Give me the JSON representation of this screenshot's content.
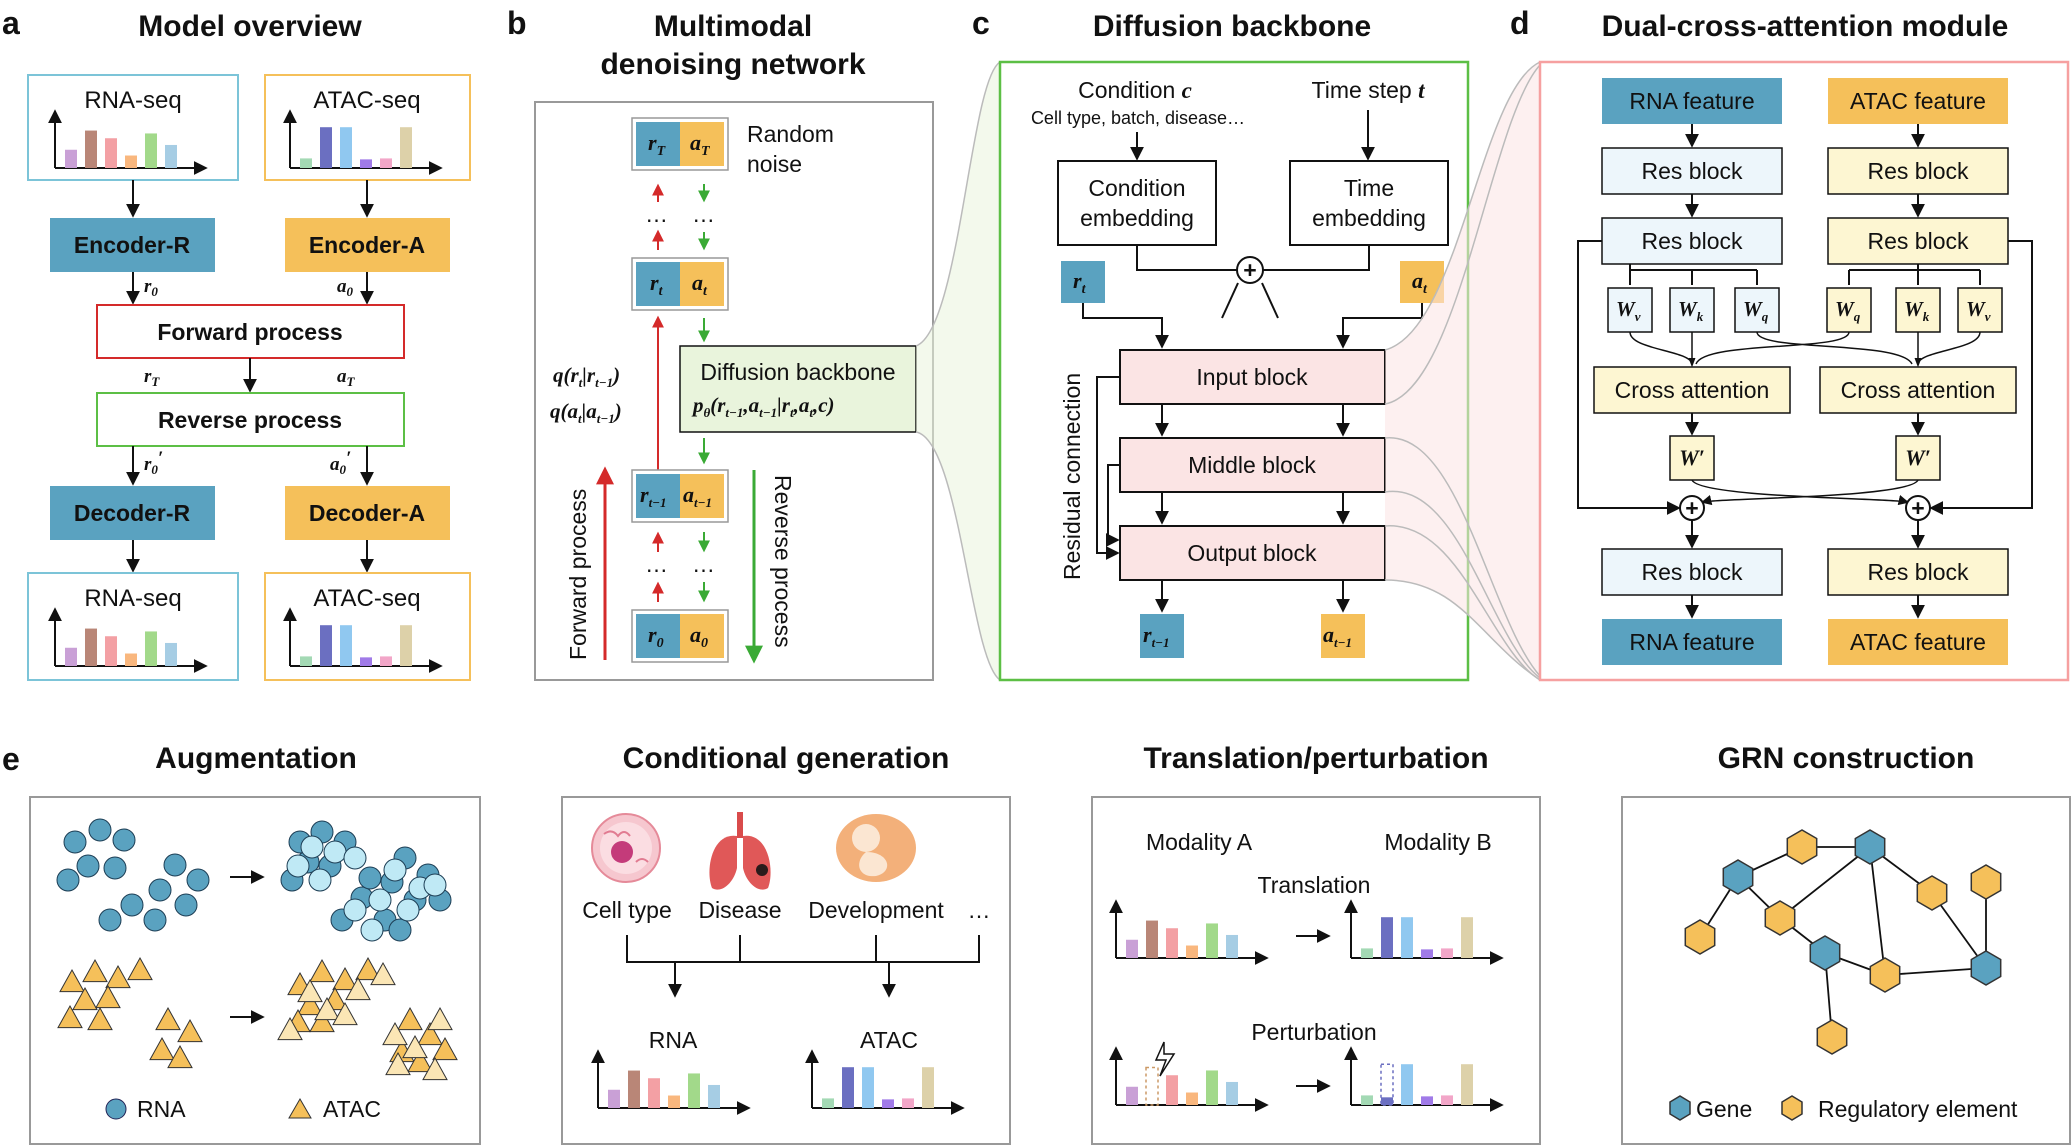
{
  "colors": {
    "rna": "#5aa2c0",
    "atac": "#f5c05a",
    "forward": "#d42a2a",
    "reverse": "#3aaa35",
    "green_box": "#5cbf45",
    "pink_box": "#f6a0a0",
    "pink_fill": "#fbe4e4",
    "light_blue": "#edf6fb",
    "light_yellow": "#fdf6d2",
    "light_green": "#e9f4dc",
    "bar_colors": [
      "#c9a0d6",
      "#b98677",
      "#f3a0a4",
      "#f9b77e",
      "#a2d98a",
      "#a6cde4"
    ],
    "atac_bar_colors": [
      "#a3d9b4",
      "#6b6fc1",
      "#90c8f0",
      "#a07ae8",
      "#f2a6c8",
      "#ddd1a9"
    ]
  },
  "panel_a": {
    "letter": "a",
    "title": "Model overview",
    "rna_in": "RNA-seq",
    "atac_in": "ATAC-seq",
    "encoder_r": "Encoder-R",
    "encoder_a": "Encoder-A",
    "r0": "r",
    "r0_sub": "0",
    "a0": "a",
    "a0_sub": "0",
    "forward": "Forward process",
    "rT": "r",
    "rT_sub": "T",
    "aT": "a",
    "aT_sub": "T",
    "reverse": "Reverse process",
    "r0p": "r",
    "r0p_sub": "0",
    "a0p": "a",
    "a0p_sub": "0",
    "prime": "′",
    "decoder_r": "Decoder-R",
    "decoder_a": "Decoder-A",
    "rna_out": "RNA-seq",
    "atac_out": "ATAC-seq"
  },
  "panel_b": {
    "letter": "b",
    "title_1": "Multimodal",
    "title_2": "denoising network",
    "random": "Random",
    "noise": "noise",
    "rT": "r",
    "rT_sub": "T",
    "aT": "a",
    "aT_sub": "T",
    "rt": "r",
    "rt_sub": "t",
    "at": "a",
    "at_sub": "t",
    "rt1": "r",
    "rt1_sub": "t−1",
    "at1": "a",
    "at1_sub": "t−1",
    "r0": "r",
    "r0_sub": "0",
    "a0": "a",
    "a0_sub": "0",
    "dots": "…",
    "q1": "q(r|r)",
    "q1_a": "q",
    "q1_b": "(r",
    "q1_s1": "t",
    "q1_c": "|r",
    "q1_s2": "t−1",
    "q1_d": ")",
    "q2_a": "q",
    "q2_b": "(a",
    "q2_s1": "t",
    "q2_c": "|a",
    "q2_s2": "t−1",
    "q2_d": ")",
    "backbone": "Diffusion backbone",
    "p_a": "p",
    "p_s1": "θ",
    "p_b": "(r",
    "p_s2": "t−1",
    "p_c": ",a",
    "p_s3": "t−1",
    "p_d": "|r",
    "p_s4": "t",
    "p_e": ",a",
    "p_s5": "t",
    "p_f": ",c)",
    "forward": "Forward process",
    "reverse": "Reverse process"
  },
  "panel_c": {
    "letter": "c",
    "title": "Diffusion backbone",
    "condition": "Condition",
    "condition_var": "c",
    "condition_sub": "Cell type, batch, disease…",
    "time": "Time step",
    "time_var": "t",
    "cond_emb_1": "Condition",
    "cond_emb_2": "embedding",
    "time_emb_1": "Time",
    "time_emb_2": "embedding",
    "plus": "+",
    "rt": "r",
    "rt_sub": "t",
    "at": "a",
    "at_sub": "t",
    "input": "Input block",
    "middle": "Middle block",
    "output": "Output block",
    "residual": "Residual connection",
    "rt1": "r",
    "rt1_sub": "t−1",
    "at1": "a",
    "at1_sub": "t−1"
  },
  "panel_d": {
    "letter": "d",
    "title": "Dual-cross-attention module",
    "rna_feature": "RNA feature",
    "atac_feature": "ATAC feature",
    "res": "Res block",
    "w": "W",
    "wv": "v",
    "wk": "k",
    "wq": "q",
    "cross": "Cross attention",
    "wprime": "W′",
    "plus": "+"
  },
  "panel_e": {
    "letter": "e",
    "aug_title": "Augmentation",
    "rna_legend": "RNA",
    "atac_legend": "ATAC",
    "cond_title": "Conditional generation",
    "cell_type": "Cell type",
    "disease": "Disease",
    "development": "Development",
    "ellipsis": "…",
    "rna": "RNA",
    "atac": "ATAC",
    "trans_title": "Translation/perturbation",
    "mod_a": "Modality A",
    "mod_b": "Modality B",
    "translation": "Translation",
    "perturbation": "Perturbation",
    "grn_title": "GRN construction",
    "gene": "Gene",
    "regulatory": "Regulatory element"
  }
}
